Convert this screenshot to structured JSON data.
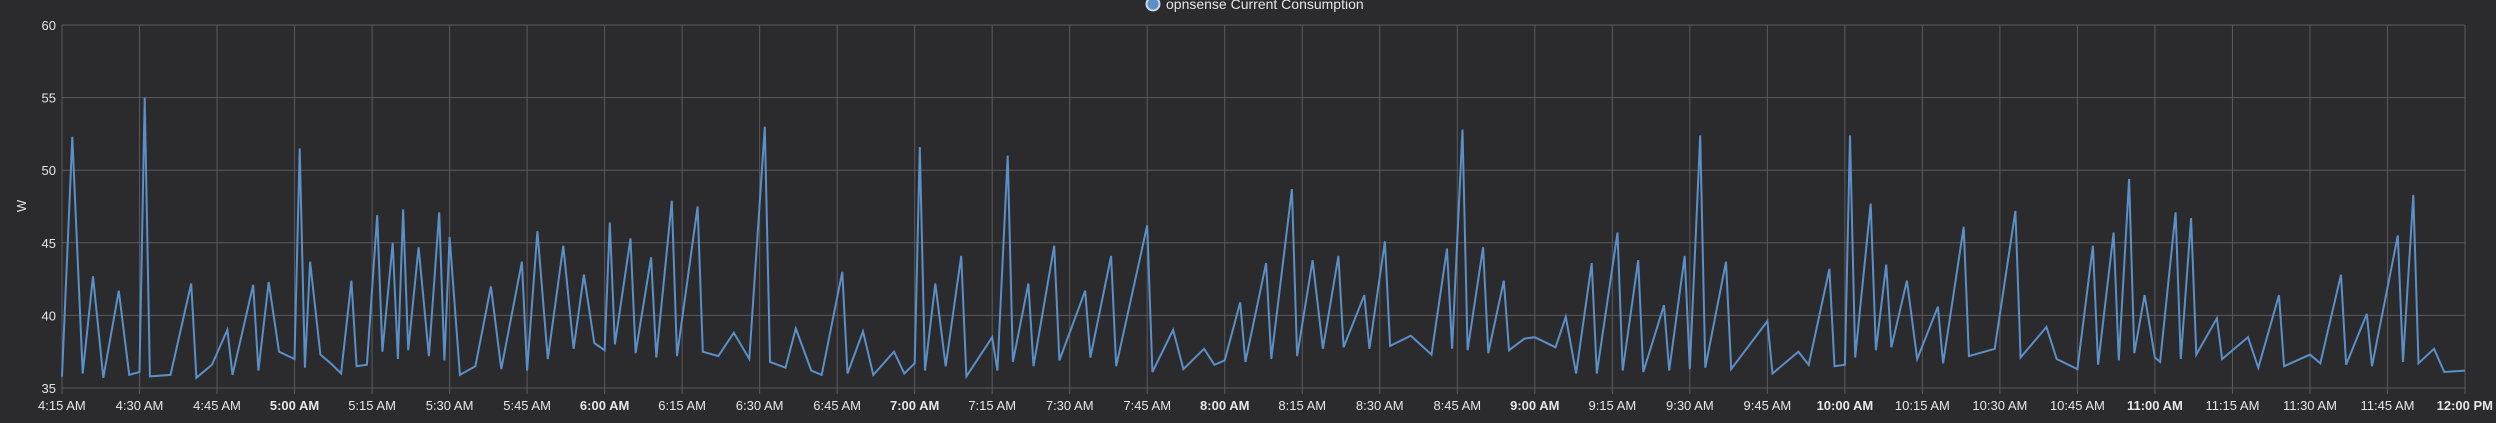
{
  "legend": {
    "label": "opnsense Current Consumption",
    "color": "#5b8fc7"
  },
  "colors": {
    "background": "#2b2b2d",
    "grid": "#5a5a5c",
    "line": "#5b8fc7",
    "text": "#e6e6e6"
  },
  "chart_data": {
    "type": "line",
    "ylabel": "W",
    "ylim": [
      35,
      60
    ],
    "yticks": [
      35,
      40,
      45,
      50,
      55,
      60
    ],
    "xticks": [
      {
        "label": "4:15 AM",
        "bold": false
      },
      {
        "label": "4:30 AM",
        "bold": false
      },
      {
        "label": "4:45 AM",
        "bold": false
      },
      {
        "label": "5:00 AM",
        "bold": true
      },
      {
        "label": "5:15 AM",
        "bold": false
      },
      {
        "label": "5:30 AM",
        "bold": false
      },
      {
        "label": "5:45 AM",
        "bold": false
      },
      {
        "label": "6:00 AM",
        "bold": true
      },
      {
        "label": "6:15 AM",
        "bold": false
      },
      {
        "label": "6:30 AM",
        "bold": false
      },
      {
        "label": "6:45 AM",
        "bold": false
      },
      {
        "label": "7:00 AM",
        "bold": true
      },
      {
        "label": "7:15 AM",
        "bold": false
      },
      {
        "label": "7:30 AM",
        "bold": false
      },
      {
        "label": "7:45 AM",
        "bold": false
      },
      {
        "label": "8:00 AM",
        "bold": true
      },
      {
        "label": "8:15 AM",
        "bold": false
      },
      {
        "label": "8:30 AM",
        "bold": false
      },
      {
        "label": "8:45 AM",
        "bold": false
      },
      {
        "label": "9:00 AM",
        "bold": true
      },
      {
        "label": "9:15 AM",
        "bold": false
      },
      {
        "label": "9:30 AM",
        "bold": false
      },
      {
        "label": "9:45 AM",
        "bold": false
      },
      {
        "label": "10:00 AM",
        "bold": true
      },
      {
        "label": "10:15 AM",
        "bold": false
      },
      {
        "label": "10:30 AM",
        "bold": false
      },
      {
        "label": "10:45 AM",
        "bold": false
      },
      {
        "label": "11:00 AM",
        "bold": true
      },
      {
        "label": "11:15 AM",
        "bold": false
      },
      {
        "label": "11:30 AM",
        "bold": false
      },
      {
        "label": "11:45 AM",
        "bold": false
      },
      {
        "label": "12:00 PM",
        "bold": true
      }
    ],
    "series": [
      {
        "name": "opnsense Current Consumption",
        "points": [
          [
            "4:15 AM",
            35.8
          ],
          [
            "4:17 AM",
            52.3
          ],
          [
            "4:19 AM",
            36.0
          ],
          [
            "4:21 AM",
            42.7
          ],
          [
            "4:23 AM",
            35.7
          ],
          [
            "4:26 AM",
            41.7
          ],
          [
            "4:28 AM",
            35.9
          ],
          [
            "4:30 AM",
            36.1
          ],
          [
            "4:31 AM",
            55.0
          ],
          [
            "4:32 AM",
            35.8
          ],
          [
            "4:36 AM",
            35.9
          ],
          [
            "4:40 AM",
            42.2
          ],
          [
            "4:41 AM",
            35.7
          ],
          [
            "4:44 AM",
            36.6
          ],
          [
            "4:47 AM",
            39.0
          ],
          [
            "4:48 AM",
            35.9
          ],
          [
            "4:52 AM",
            42.1
          ],
          [
            "4:53 AM",
            36.2
          ],
          [
            "4:55 AM",
            42.3
          ],
          [
            "4:57 AM",
            37.5
          ],
          [
            "5:00 AM",
            37.0
          ],
          [
            "5:01 AM",
            51.5
          ],
          [
            "5:02 AM",
            36.4
          ],
          [
            "5:03 AM",
            43.7
          ],
          [
            "5:05 AM",
            37.3
          ],
          [
            "5:07 AM",
            36.7
          ],
          [
            "5:09 AM",
            36.0
          ],
          [
            "5:11 AM",
            42.4
          ],
          [
            "5:12 AM",
            36.5
          ],
          [
            "5:14 AM",
            36.6
          ],
          [
            "5:16 AM",
            46.9
          ],
          [
            "5:17 AM",
            37.5
          ],
          [
            "5:19 AM",
            45.0
          ],
          [
            "5:20 AM",
            37.0
          ],
          [
            "5:21 AM",
            47.3
          ],
          [
            "5:22 AM",
            37.6
          ],
          [
            "5:24 AM",
            44.7
          ],
          [
            "5:26 AM",
            37.2
          ],
          [
            "5:28 AM",
            47.1
          ],
          [
            "5:29 AM",
            36.9
          ],
          [
            "5:30 AM",
            45.4
          ],
          [
            "5:32 AM",
            35.9
          ],
          [
            "5:35 AM",
            36.5
          ],
          [
            "5:38 AM",
            42.0
          ],
          [
            "5:40 AM",
            36.3
          ],
          [
            "5:44 AM",
            43.7
          ],
          [
            "5:45 AM",
            36.2
          ],
          [
            "5:47 AM",
            45.8
          ],
          [
            "5:49 AM",
            37.0
          ],
          [
            "5:52 AM",
            44.8
          ],
          [
            "5:54 AM",
            37.7
          ],
          [
            "5:56 AM",
            42.8
          ],
          [
            "5:58 AM",
            38.1
          ],
          [
            "6:00 AM",
            37.6
          ],
          [
            "6:01 AM",
            46.4
          ],
          [
            "6:02 AM",
            38.0
          ],
          [
            "6:05 AM",
            45.3
          ],
          [
            "6:06 AM",
            37.4
          ],
          [
            "6:09 AM",
            44.0
          ],
          [
            "6:10 AM",
            37.1
          ],
          [
            "6:13 AM",
            47.9
          ],
          [
            "6:14 AM",
            37.2
          ],
          [
            "6:18 AM",
            47.5
          ],
          [
            "6:19 AM",
            37.5
          ],
          [
            "6:22 AM",
            37.2
          ],
          [
            "6:25 AM",
            38.8
          ],
          [
            "6:28 AM",
            37.0
          ],
          [
            "6:31 AM",
            53.0
          ],
          [
            "6:32 AM",
            36.8
          ],
          [
            "6:35 AM",
            36.4
          ],
          [
            "6:37 AM",
            39.1
          ],
          [
            "6:40 AM",
            36.2
          ],
          [
            "6:42 AM",
            35.9
          ],
          [
            "6:46 AM",
            43.0
          ],
          [
            "6:47 AM",
            36.0
          ],
          [
            "6:50 AM",
            38.9
          ],
          [
            "6:52 AM",
            35.9
          ],
          [
            "6:56 AM",
            37.5
          ],
          [
            "6:58 AM",
            36.0
          ],
          [
            "7:00 AM",
            36.7
          ],
          [
            "7:01 AM",
            51.6
          ],
          [
            "7:02 AM",
            36.2
          ],
          [
            "7:04 AM",
            42.2
          ],
          [
            "7:06 AM",
            36.5
          ],
          [
            "7:09 AM",
            44.1
          ],
          [
            "7:10 AM",
            35.8
          ],
          [
            "7:15 AM",
            38.5
          ],
          [
            "7:16 AM",
            36.2
          ],
          [
            "7:18 AM",
            51.0
          ],
          [
            "7:19 AM",
            36.8
          ],
          [
            "7:22 AM",
            42.2
          ],
          [
            "7:23 AM",
            36.5
          ],
          [
            "7:27 AM",
            44.8
          ],
          [
            "7:28 AM",
            36.9
          ],
          [
            "7:33 AM",
            41.7
          ],
          [
            "7:34 AM",
            37.1
          ],
          [
            "7:38 AM",
            44.1
          ],
          [
            "7:39 AM",
            36.5
          ],
          [
            "7:45 AM",
            46.2
          ],
          [
            "7:46 AM",
            36.1
          ],
          [
            "7:50 AM",
            39.0
          ],
          [
            "7:52 AM",
            36.3
          ],
          [
            "7:56 AM",
            37.7
          ],
          [
            "7:58 AM",
            36.6
          ],
          [
            "8:00 AM",
            36.9
          ],
          [
            "8:03 AM",
            40.9
          ],
          [
            "8:04 AM",
            36.8
          ],
          [
            "8:08 AM",
            43.6
          ],
          [
            "8:09 AM",
            37.0
          ],
          [
            "8:13 AM",
            48.7
          ],
          [
            "8:14 AM",
            37.2
          ],
          [
            "8:17 AM",
            43.8
          ],
          [
            "8:19 AM",
            37.7
          ],
          [
            "8:22 AM",
            44.1
          ],
          [
            "8:23 AM",
            37.8
          ],
          [
            "8:27 AM",
            41.4
          ],
          [
            "8:28 AM",
            37.7
          ],
          [
            "8:31 AM",
            45.1
          ],
          [
            "8:32 AM",
            37.9
          ],
          [
            "8:36 AM",
            38.6
          ],
          [
            "8:40 AM",
            37.3
          ],
          [
            "8:43 AM",
            44.6
          ],
          [
            "8:44 AM",
            37.7
          ],
          [
            "8:46 AM",
            52.8
          ],
          [
            "8:47 AM",
            37.6
          ],
          [
            "8:50 AM",
            44.7
          ],
          [
            "8:51 AM",
            37.4
          ],
          [
            "8:54 AM",
            42.4
          ],
          [
            "8:55 AM",
            37.6
          ],
          [
            "8:58 AM",
            38.4
          ],
          [
            "9:00 AM",
            38.5
          ],
          [
            "9:04 AM",
            37.8
          ],
          [
            "9:06 AM",
            39.9
          ],
          [
            "9:08 AM",
            36.0
          ],
          [
            "9:11 AM",
            43.6
          ],
          [
            "9:12 AM",
            36.0
          ],
          [
            "9:16 AM",
            45.7
          ],
          [
            "9:17 AM",
            36.2
          ],
          [
            "9:20 AM",
            43.8
          ],
          [
            "9:21 AM",
            36.1
          ],
          [
            "9:25 AM",
            40.7
          ],
          [
            "9:26 AM",
            36.2
          ],
          [
            "9:29 AM",
            44.1
          ],
          [
            "9:30 AM",
            36.3
          ],
          [
            "9:32 AM",
            52.4
          ],
          [
            "9:33 AM",
            36.4
          ],
          [
            "9:37 AM",
            43.7
          ],
          [
            "9:38 AM",
            36.3
          ],
          [
            "9:45 AM",
            39.6
          ],
          [
            "9:46 AM",
            36.0
          ],
          [
            "9:51 AM",
            37.5
          ],
          [
            "9:53 AM",
            36.6
          ],
          [
            "9:57 AM",
            43.2
          ],
          [
            "9:58 AM",
            36.5
          ],
          [
            "10:00 AM",
            36.6
          ],
          [
            "10:01 AM",
            52.4
          ],
          [
            "10:02 AM",
            37.1
          ],
          [
            "10:05 AM",
            47.7
          ],
          [
            "10:06 AM",
            37.6
          ],
          [
            "10:08 AM",
            43.5
          ],
          [
            "10:09 AM",
            37.8
          ],
          [
            "10:12 AM",
            42.4
          ],
          [
            "10:14 AM",
            37.0
          ],
          [
            "10:18 AM",
            40.6
          ],
          [
            "10:19 AM",
            36.7
          ],
          [
            "10:23 AM",
            46.1
          ],
          [
            "10:24 AM",
            37.2
          ],
          [
            "10:29 AM",
            37.7
          ],
          [
            "10:33 AM",
            47.2
          ],
          [
            "10:34 AM",
            37.1
          ],
          [
            "10:39 AM",
            39.2
          ],
          [
            "10:41 AM",
            37.0
          ],
          [
            "10:45 AM",
            36.3
          ],
          [
            "10:48 AM",
            44.8
          ],
          [
            "10:49 AM",
            36.6
          ],
          [
            "10:52 AM",
            45.7
          ],
          [
            "10:53 AM",
            36.9
          ],
          [
            "10:55 AM",
            49.4
          ],
          [
            "10:56 AM",
            37.4
          ],
          [
            "10:58 AM",
            41.4
          ],
          [
            "11:00 AM",
            37.1
          ],
          [
            "11:01 AM",
            36.8
          ],
          [
            "11:04 AM",
            47.1
          ],
          [
            "11:05 AM",
            37.0
          ],
          [
            "11:07 AM",
            46.7
          ],
          [
            "11:08 AM",
            37.3
          ],
          [
            "11:12 AM",
            39.8
          ],
          [
            "11:13 AM",
            37.0
          ],
          [
            "11:18 AM",
            38.5
          ],
          [
            "11:20 AM",
            36.4
          ],
          [
            "11:24 AM",
            41.4
          ],
          [
            "11:25 AM",
            36.5
          ],
          [
            "11:30 AM",
            37.3
          ],
          [
            "11:32 AM",
            36.7
          ],
          [
            "11:36 AM",
            42.8
          ],
          [
            "11:37 AM",
            36.6
          ],
          [
            "11:41 AM",
            40.1
          ],
          [
            "11:42 AM",
            36.5
          ],
          [
            "11:47 AM",
            45.5
          ],
          [
            "11:48 AM",
            36.8
          ],
          [
            "11:50 AM",
            48.3
          ],
          [
            "11:51 AM",
            36.7
          ],
          [
            "11:54 AM",
            37.7
          ],
          [
            "11:56 AM",
            36.1
          ],
          [
            "12:00 PM",
            36.2
          ]
        ]
      }
    ]
  }
}
